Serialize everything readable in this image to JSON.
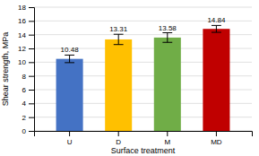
{
  "chart_data": {
    "type": "bar",
    "categories": [
      "U",
      "D",
      "M",
      "MD"
    ],
    "values": [
      10.48,
      13.31,
      13.58,
      14.84
    ],
    "errors": [
      0.55,
      0.75,
      0.7,
      0.5
    ],
    "colors": [
      "#4472C4",
      "#FFC000",
      "#70AD47",
      "#C00000"
    ],
    "xlabel": "Surface treatment",
    "ylabel": "Shear strength, MPa",
    "ylim": [
      0,
      18
    ],
    "yticks": [
      0,
      2,
      4,
      6,
      8,
      10,
      12,
      14,
      16,
      18
    ],
    "grid": true,
    "data_labels": true
  }
}
